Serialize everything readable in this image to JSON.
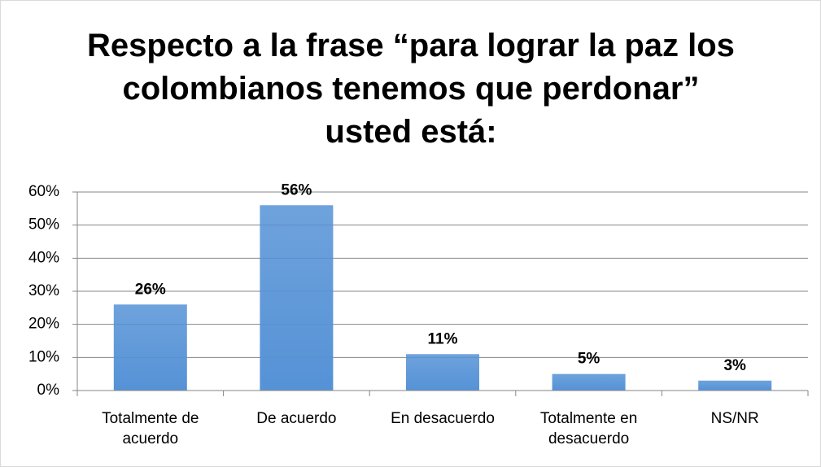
{
  "chart_data": {
    "type": "bar",
    "title": "Respecto a la frase “para lograr la paz los colombianos tenemos que perdonar” usted está:",
    "categories": [
      "Totalmente de acuerdo",
      "De acuerdo",
      "En desacuerdo",
      "Totalmente en desacuerdo",
      "NS/NR"
    ],
    "values": [
      26,
      56,
      11,
      5,
      3
    ],
    "value_labels": [
      "26%",
      "56%",
      "11%",
      "5%",
      "3%"
    ],
    "color": "#5592d6",
    "ylim": [
      0,
      60
    ],
    "yticks": [
      {
        "value": 0,
        "label": "0%"
      },
      {
        "value": 10,
        "label": "10%"
      },
      {
        "value": 20,
        "label": "20%"
      },
      {
        "value": 30,
        "label": "30%"
      },
      {
        "value": 40,
        "label": "40%"
      },
      {
        "value": 50,
        "label": "50%"
      },
      {
        "value": 60,
        "label": "60%"
      }
    ],
    "grid": true
  }
}
